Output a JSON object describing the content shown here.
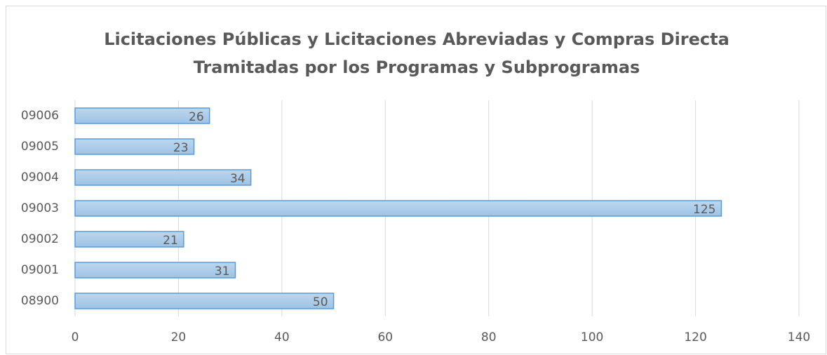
{
  "chart_data": {
    "type": "hbar",
    "title": [
      "Licitaciones Públicas y Licitaciones Abreviadas y Compras Directa",
      "Tramitadas por los Programas y Subprogramas"
    ],
    "categories": [
      "09006",
      "09005",
      "09004",
      "09003",
      "09002",
      "09001",
      "08900"
    ],
    "values": [
      26,
      23,
      34,
      125,
      21,
      31,
      50
    ],
    "color": "#9dc3e6",
    "xlim": [
      0,
      140
    ],
    "xticks": [
      0,
      20,
      40,
      60,
      80,
      100,
      120,
      140
    ],
    "grid": true
  }
}
